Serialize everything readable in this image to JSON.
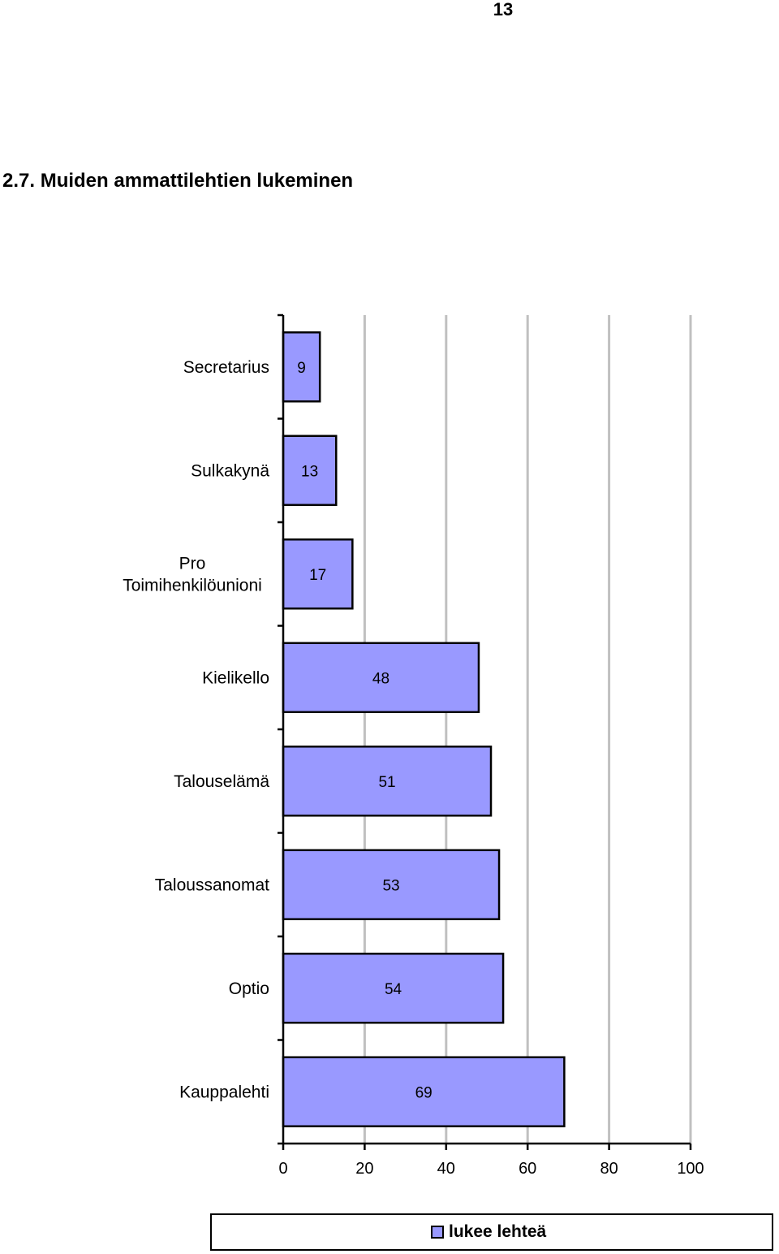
{
  "page": {
    "number": "13",
    "section_title": "2.7. Muiden ammattilehtien lukeminen"
  },
  "chart_data": {
    "type": "bar",
    "orientation": "horizontal",
    "categories": [
      "Secretarius",
      "Sulkakynä",
      "Pro Toimihenkilöunioni",
      "Kielikello",
      "Talouselämä",
      "Taloussanomat",
      "Optio",
      "Kauppalehti"
    ],
    "category_lines": [
      [
        "Secretarius"
      ],
      [
        "Sulkakynä"
      ],
      [
        "Pro",
        "Toimihenkilöunioni"
      ],
      [
        "Kielikello"
      ],
      [
        "Talouselämä"
      ],
      [
        "Taloussanomat"
      ],
      [
        "Optio"
      ],
      [
        "Kauppalehti"
      ]
    ],
    "series": [
      {
        "name": "lukee lehteä",
        "values": [
          9,
          13,
          17,
          48,
          51,
          53,
          54,
          69
        ],
        "color": "#9999ff"
      }
    ],
    "xlim": [
      0,
      100
    ],
    "xticks": [
      "0",
      "20",
      "40",
      "60",
      "80",
      "100"
    ],
    "grid": "vertical",
    "grid_color": "#c0c0c0",
    "legend_position": "bottom",
    "data_labels": true
  }
}
